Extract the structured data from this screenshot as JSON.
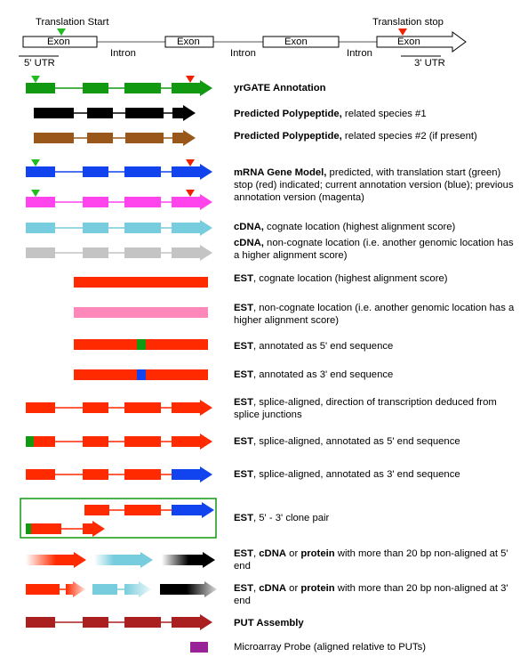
{
  "header": {
    "translation_start": "Translation Start",
    "translation_stop": "Translation stop",
    "exon": "Exon",
    "intron": "Intron",
    "utr5": "5' UTR",
    "utr3": "3' UTR"
  },
  "colors": {
    "green": "#119911",
    "black": "#000000",
    "brown": "#99581a",
    "blue": "#1144ee",
    "magenta": "#ff44ee",
    "cyan": "#77ccdd",
    "gray": "#c4c4c4",
    "red": "#ff2a00",
    "pink": "#ff88bb",
    "put": "#aa2020",
    "purple": "#992299",
    "start_marker": "#22bb22",
    "stop_marker": "#ee2200",
    "pair_box": "#119911"
  },
  "legend": [
    {
      "bold": "yrGATE Annotation",
      "text": ""
    },
    {
      "bold": "Predicted Polypeptide,",
      "text": " related species #1"
    },
    {
      "bold": "Predicted Polypeptide,",
      "text": " related species #2 (if present)"
    },
    {
      "bold": "mRNA Gene Model,",
      "text": " predicted, with  translation start (green) stop (red) indicated; current annotation version (blue); previous annotation version (magenta)"
    },
    {
      "bold": "cDNA,",
      "text": " cognate location (highest alignment score)"
    },
    {
      "bold": "cDNA,",
      "text": " non-cognate location (i.e. another genomic location has a higher alignment score)"
    },
    {
      "bold": "EST",
      "text": ", cognate location (highest alignment score)"
    },
    {
      "bold": "EST",
      "text": ",  non-cognate location (i.e. another genomic location has a higher alignment score)"
    },
    {
      "bold": "EST",
      "text": ", annotated as 5' end sequence"
    },
    {
      "bold": "EST",
      "text": ", annotated as 3' end sequence"
    },
    {
      "bold": "EST",
      "text": ", splice-aligned, direction of transcription deduced from splice junctions"
    },
    {
      "bold": "EST",
      "text": ", splice-aligned, annotated as 5' end sequence"
    },
    {
      "bold": "EST",
      "text": ", splice-aligned, annotated as 3' end sequence"
    },
    {
      "bold": "EST",
      "text": ",   5' - 3' clone pair"
    },
    {
      "bold": "EST",
      "text": ", <b>cDNA</b> or <b>protein</b> with more than 20 bp non-aligned at 5' end"
    },
    {
      "bold": "EST",
      "text": ", <b>cDNA</b> or <b>protein</b> with more than 20 bp non-aligned at 3' end"
    },
    {
      "bold": "PUT Assembly",
      "text": ""
    },
    {
      "bold": "",
      "text": "Microarray Probe (aligned relative to PUTs)"
    }
  ]
}
